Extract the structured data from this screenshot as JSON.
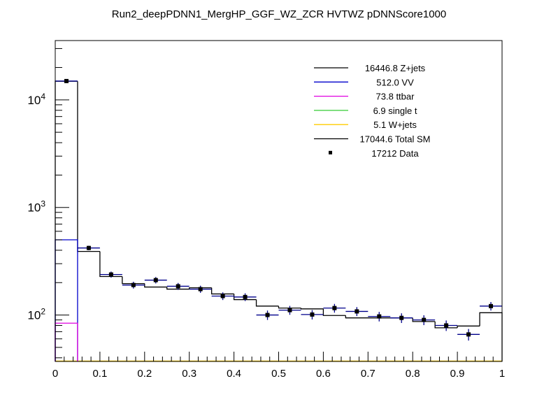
{
  "chart_data": {
    "type": "histogram",
    "title": "Run2_deepPDNN1_MergHP_GGF_WZ_ZCR HVTWZ  pDNNScore1000",
    "xlabel": "",
    "ylabel": "",
    "xlim": [
      0,
      1
    ],
    "ylim": [
      37,
      35600
    ],
    "yscale": "log",
    "x_ticks": [
      "0",
      "0.1",
      "0.2",
      "0.3",
      "0.4",
      "0.5",
      "0.6",
      "0.7",
      "0.8",
      "0.9",
      "1"
    ],
    "y_ticks": [
      {
        "base": "10",
        "exp": "2",
        "value": 100
      },
      {
        "base": "10",
        "exp": "3",
        "value": 1000
      },
      {
        "base": "10",
        "exp": "4",
        "value": 10000
      }
    ],
    "bin_edges": [
      0,
      0.05,
      0.1,
      0.15,
      0.2,
      0.25,
      0.3,
      0.35,
      0.4,
      0.45,
      0.5,
      0.55,
      0.6,
      0.65,
      0.7,
      0.75,
      0.8,
      0.85,
      0.9,
      0.95,
      1.0
    ],
    "series": [
      {
        "name": "Total SM",
        "color": "#000000",
        "values": [
          14900,
          390,
          228,
          196,
          182,
          174,
          179,
          157,
          139,
          121,
          116,
          114,
          99,
          94,
          94,
          94,
          87,
          76,
          79,
          105
        ]
      },
      {
        "name": "VV",
        "color": "#0000cc",
        "values": [
          500,
          null,
          null,
          null,
          null,
          null,
          null,
          null,
          null,
          null,
          null,
          null,
          null,
          null,
          null,
          null,
          null,
          null,
          null,
          null
        ]
      },
      {
        "name": "ttbar",
        "color": "#e000e0",
        "values": [
          84,
          null,
          null,
          null,
          null,
          null,
          null,
          null,
          null,
          null,
          null,
          null,
          null,
          null,
          null,
          null,
          null,
          null,
          null,
          null
        ]
      },
      {
        "name": "Data",
        "color": "#000000",
        "errcolor": "#00008b",
        "values": [
          14960,
          420,
          238,
          190,
          211,
          185,
          174,
          150,
          147,
          100,
          111,
          101,
          116,
          108,
          97,
          94,
          90,
          80,
          66,
          121
        ]
      }
    ],
    "legend": {
      "position": "top-right",
      "entries": [
        {
          "label": "16446.8 Z+jets",
          "color": "#000000",
          "style": "line"
        },
        {
          "label": "512.0 VV",
          "color": "#0000cc",
          "style": "line"
        },
        {
          "label": "73.8 ttbar",
          "color": "#e000e0",
          "style": "line"
        },
        {
          "label": "6.9 single t",
          "color": "#33cc33",
          "style": "line"
        },
        {
          "label": "5.1 W+jets",
          "color": "#ffcc00",
          "style": "line"
        },
        {
          "label": "17044.6 Total SM",
          "color": "#000000",
          "style": "line"
        },
        {
          "label": "17212 Data",
          "color": "#000000",
          "style": "marker"
        }
      ]
    }
  }
}
